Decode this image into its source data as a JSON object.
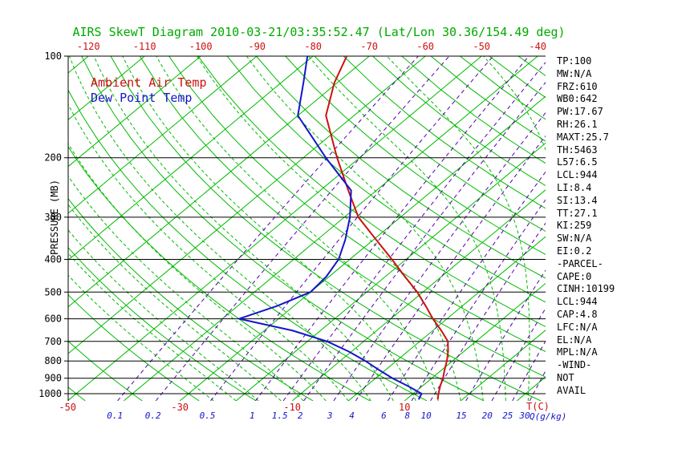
{
  "title": "AIRS SkewT Diagram 2010-03-21/03:35:52.47 (Lat/Lon 30.36/154.49 deg)",
  "legend": {
    "ambient": "Ambient Air Temp",
    "dew_point": "Dew Point Temp"
  },
  "axes": {
    "pressure_label": "PRESSURE (MB)",
    "pressure_ticks": [
      100,
      200,
      300,
      400,
      500,
      600,
      700,
      800,
      900,
      1000
    ],
    "top_temp_ticks": [
      -120,
      -110,
      -100,
      -90,
      -80,
      -70,
      -60,
      -50,
      -40
    ],
    "bottom_temp_ticks": [
      -50,
      -30,
      -10,
      10
    ],
    "mixing_ratio_ticks": [
      0.1,
      0.2,
      0.5,
      1,
      1.5,
      2,
      3,
      4,
      6,
      8,
      10,
      15,
      20,
      25,
      30
    ],
    "temp_unit_label": "T(C)",
    "mixing_ratio_unit_label": "Q(g/kg)"
  },
  "stats_panel": [
    "TP:100",
    "MW:N/A",
    "FRZ:610",
    "WB0:642",
    "PW:17.67",
    "RH:26.1",
    "MAXT:25.7",
    "TH:5463",
    "L57:6.5",
    "LCL:944",
    "LI:8.4",
    "SI:13.4",
    "TT:27.1",
    "KI:259",
    "SW:N/A",
    "EI:0.2",
    "-PARCEL-",
    "CAPE:0",
    "CINH:10199",
    "LCL:944",
    "CAP:4.8",
    "LFC:N/A",
    "EL:N/A",
    "MPL:N/A",
    "-WIND-",
    "NOT",
    "AVAIL"
  ],
  "colors": {
    "grid_green": "#00bb00",
    "temp_red": "#cc1111",
    "dew_blue": "#1515cc",
    "mixing_purple": "#5500aa",
    "title_green": "#00aa00",
    "axis_black": "#000000"
  },
  "chart_data": {
    "type": "line",
    "subtype": "skewt-logp",
    "title": "AIRS SkewT Diagram 2010-03-21/03:35:52.47 (Lat/Lon 30.36/154.49 deg)",
    "xlabel": "T(C)",
    "ylabel": "PRESSURE (MB)",
    "pressure_range": [
      100,
      1050
    ],
    "pressure_scale": "log",
    "surface_temp_range": [
      -52,
      35
    ],
    "grid": {
      "isotherms_deg_step": 10,
      "dry_adiabats": "solid green",
      "moist_adiabats": "dashed green",
      "mixing_ratio_lines": "dashed purple"
    },
    "legend_position": "top-left inside plot",
    "series": [
      {
        "id": "ambient",
        "name": "Ambient Air Temp",
        "color": "#cc1111",
        "points_format": [
          "pressure_mb",
          "temp_c"
        ],
        "points": [
          [
            1040,
            15.6
          ],
          [
            1000,
            14.5
          ],
          [
            950,
            13.2
          ],
          [
            900,
            12.0
          ],
          [
            850,
            10.5
          ],
          [
            800,
            9.0
          ],
          [
            750,
            7.2
          ],
          [
            700,
            5.0
          ],
          [
            650,
            1.5
          ],
          [
            600,
            -2.5
          ],
          [
            550,
            -6.5
          ],
          [
            500,
            -11.0
          ],
          [
            450,
            -16.5
          ],
          [
            400,
            -22.5
          ],
          [
            350,
            -29.5
          ],
          [
            300,
            -37.5
          ],
          [
            250,
            -45.0
          ],
          [
            200,
            -54.0
          ],
          [
            150,
            -65.0
          ],
          [
            120,
            -70.5
          ],
          [
            100,
            -74.0
          ]
        ]
      },
      {
        "id": "dewpoint",
        "name": "Dew Point Temp",
        "color": "#1515cc",
        "points_format": [
          "pressure_mb",
          "temp_c"
        ],
        "points": [
          [
            1040,
            12.2
          ],
          [
            1000,
            11.5
          ],
          [
            950,
            7.5
          ],
          [
            900,
            3.0
          ],
          [
            850,
            -1.2
          ],
          [
            800,
            -5.5
          ],
          [
            750,
            -10.5
          ],
          [
            700,
            -16.5
          ],
          [
            650,
            -25.0
          ],
          [
            600,
            -37.0
          ],
          [
            550,
            -33.0
          ],
          [
            500,
            -30.0
          ],
          [
            450,
            -30.5
          ],
          [
            400,
            -32.0
          ],
          [
            350,
            -35.0
          ],
          [
            300,
            -39.0
          ],
          [
            250,
            -44.5
          ],
          [
            200,
            -56.0
          ],
          [
            150,
            -70.0
          ],
          [
            120,
            -76.0
          ],
          [
            100,
            -81.0
          ]
        ]
      }
    ]
  }
}
